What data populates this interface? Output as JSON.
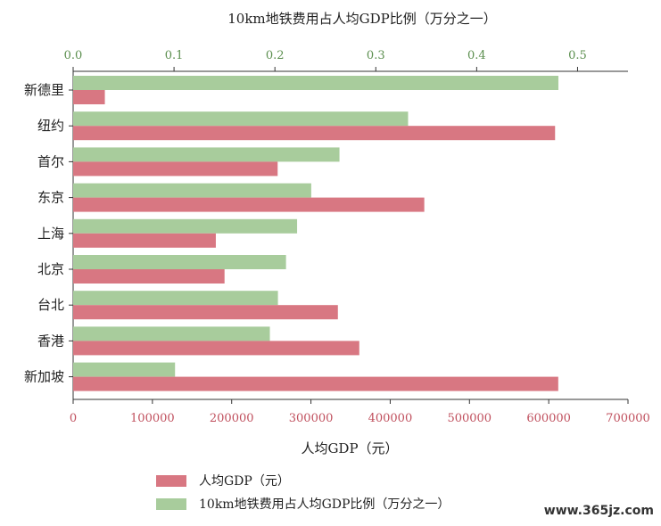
{
  "chart_data": {
    "type": "bar",
    "orientation": "horizontal",
    "categories": [
      "新德里",
      "纽约",
      "首尔",
      "东京",
      "上海",
      "北京",
      "台北",
      "香港",
      "新加坡"
    ],
    "series": [
      {
        "name": "10km地铁费用占人均GDP比例（万分之一）",
        "axis": "top",
        "color": "#a8cc9c",
        "values": [
          0.481,
          0.332,
          0.264,
          0.236,
          0.222,
          0.211,
          0.203,
          0.195,
          0.101
        ]
      },
      {
        "name": "人均GDP（元）",
        "axis": "bottom",
        "color": "#d87782",
        "values": [
          40000,
          608000,
          258000,
          443000,
          180000,
          191000,
          334000,
          361000,
          612000
        ]
      }
    ],
    "top_axis": {
      "label": "10km地铁费用占人均GDP比例（万分之一）",
      "range": [
        0,
        0.55
      ],
      "ticks": [
        "0.0",
        "0.1",
        "0.2",
        "0.3",
        "0.4",
        "0.5"
      ]
    },
    "bottom_axis": {
      "label": "人均GDP（元）",
      "range": [
        0,
        700000
      ],
      "ticks": [
        "0",
        "100000",
        "200000",
        "300000",
        "400000",
        "500000",
        "600000",
        "700000"
      ]
    },
    "legend_placement": "bottom-left",
    "grid": false
  },
  "watermark": "www.365jz.com"
}
